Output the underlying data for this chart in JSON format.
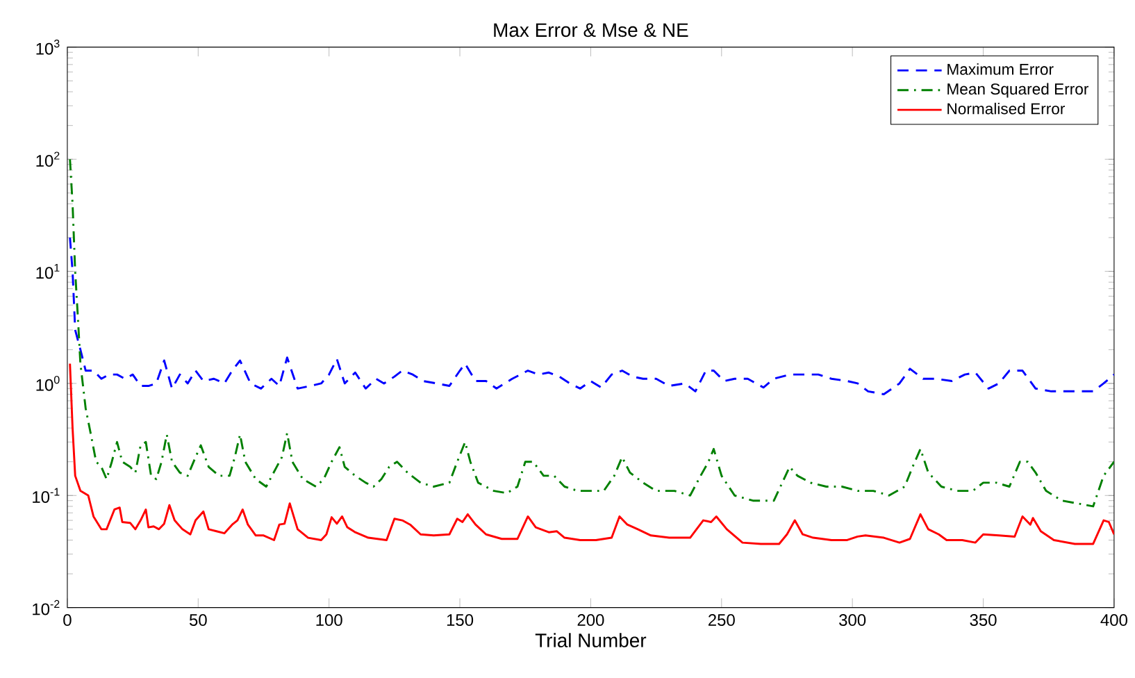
{
  "chart_data": {
    "type": "line",
    "title": "Max Error & Mse & NE",
    "xlabel": "Trial Number",
    "log": "y",
    "grid": false,
    "legend": "top right",
    "xlim": [
      0,
      400
    ],
    "xticks": [
      0,
      50,
      100,
      150,
      200,
      250,
      300,
      350,
      400
    ],
    "ylim": [
      0.01,
      1000
    ],
    "yticks": [
      {
        "value": 0.01,
        "label": "10$^{-2}$"
      },
      {
        "value": 0.1,
        "label": "10$^{-1}$"
      },
      {
        "value": 1,
        "label": "10$^{0}$"
      },
      {
        "value": 10,
        "label": "10$^{1}$"
      },
      {
        "value": 100,
        "label": "10$^{2}$"
      },
      {
        "value": 1000,
        "label": "10$^{3}$"
      }
    ],
    "series": [
      {
        "name": "Maximum Error",
        "color": "#0000ff",
        "line_style": "dashed",
        "x": [
          1,
          2,
          3,
          5,
          7,
          10,
          13,
          16,
          19,
          22,
          25,
          28,
          31,
          34,
          37,
          40,
          43,
          46,
          49,
          52,
          56,
          60,
          63,
          66,
          70,
          74,
          78,
          81,
          84,
          88,
          93,
          97,
          100,
          103,
          106,
          110,
          114,
          118,
          121,
          125,
          128,
          132,
          136,
          141,
          146,
          150,
          152,
          156,
          160,
          164,
          170,
          176,
          180,
          184,
          188,
          192,
          196,
          200,
          204,
          208,
          212,
          216,
          220,
          225,
          230,
          236,
          240,
          244,
          247,
          251,
          255,
          260,
          266,
          270,
          276,
          282,
          287,
          292,
          298,
          302,
          306,
          312,
          318,
          322,
          327,
          332,
          338,
          343,
          347,
          352,
          356,
          360,
          365,
          370,
          376,
          380,
          386,
          392,
          396,
          400
        ],
        "values": [
          20,
          10,
          3,
          2,
          1.3,
          1.3,
          1.1,
          1.2,
          1.2,
          1.1,
          1.2,
          0.95,
          0.95,
          1.0,
          1.6,
          0.9,
          1.2,
          1.0,
          1.3,
          1.05,
          1.1,
          1.0,
          1.3,
          1.6,
          1.0,
          0.9,
          1.1,
          0.95,
          1.7,
          0.9,
          0.95,
          1.0,
          1.2,
          1.65,
          1.0,
          1.25,
          0.9,
          1.1,
          1.0,
          1.15,
          1.3,
          1.2,
          1.05,
          1.0,
          0.95,
          1.3,
          1.5,
          1.05,
          1.05,
          0.9,
          1.1,
          1.3,
          1.2,
          1.25,
          1.15,
          1.0,
          0.9,
          1.05,
          0.92,
          1.2,
          1.3,
          1.15,
          1.1,
          1.1,
          0.95,
          1.0,
          0.85,
          1.3,
          1.3,
          1.05,
          1.1,
          1.1,
          0.92,
          1.1,
          1.2,
          1.2,
          1.2,
          1.1,
          1.05,
          1.0,
          0.85,
          0.8,
          1.0,
          1.35,
          1.1,
          1.1,
          1.05,
          1.2,
          1.25,
          0.9,
          1.0,
          1.3,
          1.3,
          0.9,
          0.85,
          0.85,
          0.85,
          0.85,
          1.0,
          1.2
        ]
      },
      {
        "name": "Mean Squared Error",
        "color": "#008000",
        "line_style": "dashdot",
        "x": [
          1,
          2,
          3,
          4,
          5,
          7,
          9,
          11,
          13,
          15,
          17,
          19,
          21,
          24,
          26,
          28,
          30,
          32,
          34,
          36,
          38,
          40,
          43,
          46,
          49,
          51,
          54,
          58,
          62,
          64,
          66,
          68,
          72,
          76,
          80,
          82,
          84,
          86,
          90,
          95,
          98,
          101,
          104,
          106,
          110,
          114,
          117,
          120,
          123,
          126,
          130,
          135,
          140,
          146,
          149,
          152,
          154,
          157,
          163,
          168,
          172,
          175,
          178,
          182,
          186,
          190,
          195,
          200,
          205,
          209,
          212,
          215,
          220,
          225,
          232,
          238,
          242,
          245,
          247,
          250,
          255,
          262,
          270,
          276,
          279,
          284,
          290,
          296,
          302,
          308,
          314,
          320,
          323,
          326,
          329,
          334,
          340,
          346,
          350,
          355,
          360,
          364,
          367,
          370,
          374,
          380,
          386,
          392,
          396,
          400
        ],
        "values": [
          100,
          40,
          10,
          4,
          1.5,
          0.6,
          0.35,
          0.2,
          0.18,
          0.14,
          0.2,
          0.3,
          0.2,
          0.18,
          0.16,
          0.28,
          0.3,
          0.15,
          0.14,
          0.2,
          0.35,
          0.2,
          0.16,
          0.15,
          0.22,
          0.28,
          0.18,
          0.15,
          0.15,
          0.22,
          0.35,
          0.2,
          0.14,
          0.12,
          0.18,
          0.22,
          0.36,
          0.2,
          0.14,
          0.12,
          0.14,
          0.2,
          0.27,
          0.18,
          0.15,
          0.13,
          0.12,
          0.14,
          0.18,
          0.2,
          0.16,
          0.13,
          0.12,
          0.13,
          0.2,
          0.3,
          0.2,
          0.13,
          0.11,
          0.105,
          0.12,
          0.2,
          0.2,
          0.15,
          0.15,
          0.12,
          0.11,
          0.11,
          0.11,
          0.15,
          0.22,
          0.16,
          0.13,
          0.11,
          0.11,
          0.1,
          0.15,
          0.2,
          0.26,
          0.15,
          0.1,
          0.09,
          0.09,
          0.18,
          0.15,
          0.13,
          0.12,
          0.12,
          0.11,
          0.11,
          0.1,
          0.12,
          0.18,
          0.26,
          0.16,
          0.12,
          0.11,
          0.11,
          0.13,
          0.13,
          0.12,
          0.2,
          0.2,
          0.16,
          0.11,
          0.09,
          0.085,
          0.08,
          0.15,
          0.2
        ]
      },
      {
        "name": "Normalised Error",
        "color": "#ff0000",
        "line_style": "solid",
        "x": [
          1,
          2,
          3,
          5,
          8,
          10,
          13,
          15,
          18,
          20,
          21,
          24,
          26,
          28,
          30,
          31,
          33,
          35,
          37,
          39,
          41,
          44,
          47,
          49,
          52,
          54,
          57,
          60,
          63,
          65,
          67,
          69,
          72,
          75,
          79,
          81,
          83,
          85,
          88,
          92,
          97,
          99,
          101,
          103,
          105,
          107,
          110,
          115,
          122,
          125,
          128,
          131,
          135,
          140,
          146,
          149,
          151,
          153,
          156,
          160,
          166,
          172,
          176,
          179,
          184,
          187,
          190,
          196,
          202,
          208,
          211,
          214,
          218,
          223,
          230,
          238,
          243,
          246,
          248,
          252,
          258,
          265,
          272,
          275,
          278,
          281,
          285,
          292,
          298,
          302,
          305,
          312,
          318,
          322,
          326,
          329,
          333,
          336,
          342,
          347,
          350,
          356,
          362,
          365,
          368,
          369,
          372,
          377,
          385,
          392,
          396,
          398,
          400
        ],
        "values": [
          1.5,
          0.4,
          0.15,
          0.11,
          0.1,
          0.065,
          0.05,
          0.05,
          0.075,
          0.078,
          0.058,
          0.057,
          0.05,
          0.06,
          0.075,
          0.052,
          0.053,
          0.05,
          0.056,
          0.082,
          0.06,
          0.05,
          0.045,
          0.06,
          0.072,
          0.05,
          0.048,
          0.046,
          0.055,
          0.06,
          0.075,
          0.055,
          0.044,
          0.044,
          0.04,
          0.055,
          0.056,
          0.085,
          0.05,
          0.042,
          0.04,
          0.045,
          0.064,
          0.056,
          0.065,
          0.052,
          0.047,
          0.042,
          0.04,
          0.062,
          0.06,
          0.055,
          0.045,
          0.044,
          0.045,
          0.062,
          0.058,
          0.068,
          0.055,
          0.045,
          0.041,
          0.041,
          0.065,
          0.052,
          0.047,
          0.048,
          0.042,
          0.04,
          0.04,
          0.042,
          0.065,
          0.055,
          0.05,
          0.044,
          0.042,
          0.042,
          0.06,
          0.058,
          0.065,
          0.05,
          0.038,
          0.037,
          0.037,
          0.045,
          0.06,
          0.045,
          0.042,
          0.04,
          0.04,
          0.043,
          0.044,
          0.042,
          0.038,
          0.041,
          0.068,
          0.05,
          0.045,
          0.04,
          0.04,
          0.038,
          0.045,
          0.044,
          0.043,
          0.065,
          0.055,
          0.063,
          0.048,
          0.04,
          0.037,
          0.037,
          0.06,
          0.058,
          0.045
        ]
      }
    ]
  }
}
